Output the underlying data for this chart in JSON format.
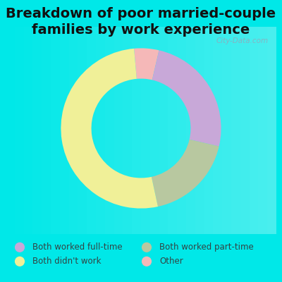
{
  "title": "Breakdown of poor married-couple\nfamilies by work experience",
  "slices": [
    {
      "label": "Both worked full-time",
      "value": 25,
      "color": "#c8a8d8"
    },
    {
      "label": "Both worked part-time",
      "value": 18,
      "color": "#b8c8a0"
    },
    {
      "label": "Both didn't work",
      "value": 52,
      "color": "#f0f098"
    },
    {
      "label": "Other",
      "value": 5,
      "color": "#f5b8b8"
    }
  ],
  "bg_outer": "#00e8e8",
  "bg_chart_color1": "#d8ece0",
  "bg_chart_color2": "#f0f8f0",
  "title_color": "#111111",
  "title_fontsize": 14,
  "donut_width": 0.38,
  "watermark": "City-Data.com",
  "legend_text_color": "#334444",
  "legend_fontsize": 8.5
}
